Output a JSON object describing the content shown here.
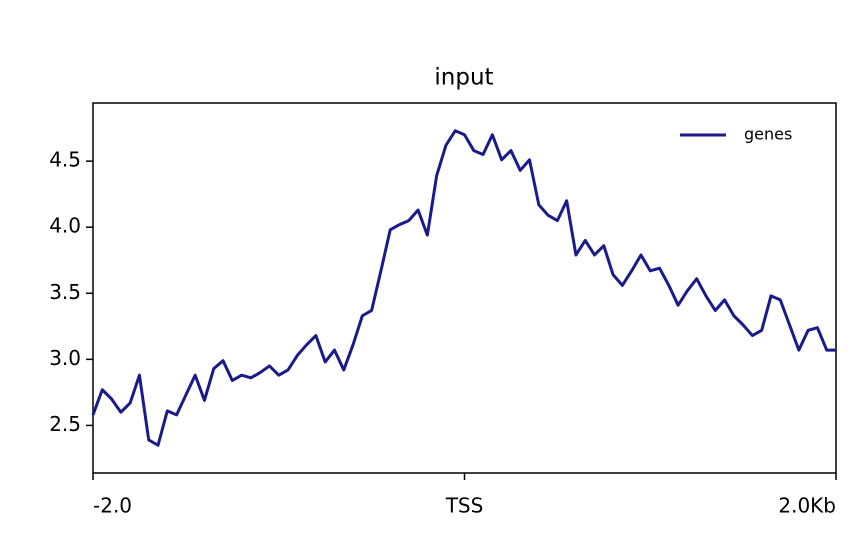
{
  "chart_data": {
    "type": "line",
    "title": "input",
    "x": [
      -2.0,
      -1.95,
      -1.9,
      -1.85,
      -1.8,
      -1.75,
      -1.7,
      -1.65,
      -1.6,
      -1.55,
      -1.5,
      -1.45,
      -1.4,
      -1.35,
      -1.3,
      -1.25,
      -1.2,
      -1.15,
      -1.1,
      -1.05,
      -1.0,
      -0.95,
      -0.9,
      -0.85,
      -0.8,
      -0.75,
      -0.7,
      -0.65,
      -0.6,
      -0.55,
      -0.5,
      -0.45,
      -0.4,
      -0.35,
      -0.3,
      -0.25,
      -0.2,
      -0.15,
      -0.1,
      -0.05,
      0.0,
      0.05,
      0.1,
      0.15,
      0.2,
      0.25,
      0.3,
      0.35,
      0.4,
      0.45,
      0.5,
      0.55,
      0.6,
      0.65,
      0.7,
      0.75,
      0.8,
      0.85,
      0.9,
      0.95,
      1.0,
      1.05,
      1.1,
      1.15,
      1.2,
      1.25,
      1.3,
      1.35,
      1.4,
      1.45,
      1.5,
      1.55,
      1.6,
      1.65,
      1.7,
      1.75,
      1.8,
      1.85,
      1.9,
      1.95,
      2.0
    ],
    "series": [
      {
        "name": "genes",
        "color": "#1a1a8a",
        "values": [
          2.58,
          2.77,
          2.7,
          2.6,
          2.67,
          2.88,
          2.39,
          2.35,
          2.61,
          2.58,
          2.73,
          2.88,
          2.69,
          2.93,
          2.99,
          2.84,
          2.88,
          2.86,
          2.9,
          2.95,
          2.88,
          2.92,
          3.03,
          3.11,
          3.18,
          2.98,
          3.07,
          2.92,
          3.11,
          3.33,
          3.37,
          3.67,
          3.98,
          4.02,
          4.05,
          4.13,
          3.94,
          4.39,
          4.62,
          4.73,
          4.7,
          4.58,
          4.55,
          4.7,
          4.51,
          4.58,
          4.43,
          4.51,
          4.17,
          4.09,
          4.05,
          4.2,
          3.79,
          3.9,
          3.79,
          3.86,
          3.64,
          3.56,
          3.67,
          3.79,
          3.67,
          3.69,
          3.56,
          3.41,
          3.52,
          3.61,
          3.48,
          3.37,
          3.45,
          3.33,
          3.26,
          3.18,
          3.22,
          3.48,
          3.45,
          3.26,
          3.07,
          3.22,
          3.24,
          3.07,
          3.07
        ]
      }
    ],
    "xlim": [
      -2,
      2
    ],
    "xticks": [
      {
        "value": -2,
        "label": "-2.0"
      },
      {
        "value": 0,
        "label": "TSS"
      },
      {
        "value": 2,
        "label": "2.0Kb"
      }
    ],
    "ylim": [
      2.14,
      4.94
    ],
    "yticks": [
      {
        "value": 2.5,
        "label": "2.5"
      },
      {
        "value": 3,
        "label": "3.0"
      },
      {
        "value": 3.5,
        "label": "3.5"
      },
      {
        "value": 4,
        "label": "4.0"
      },
      {
        "value": 4.5,
        "label": "4.5"
      }
    ],
    "grid": false,
    "legend": "upper right"
  }
}
